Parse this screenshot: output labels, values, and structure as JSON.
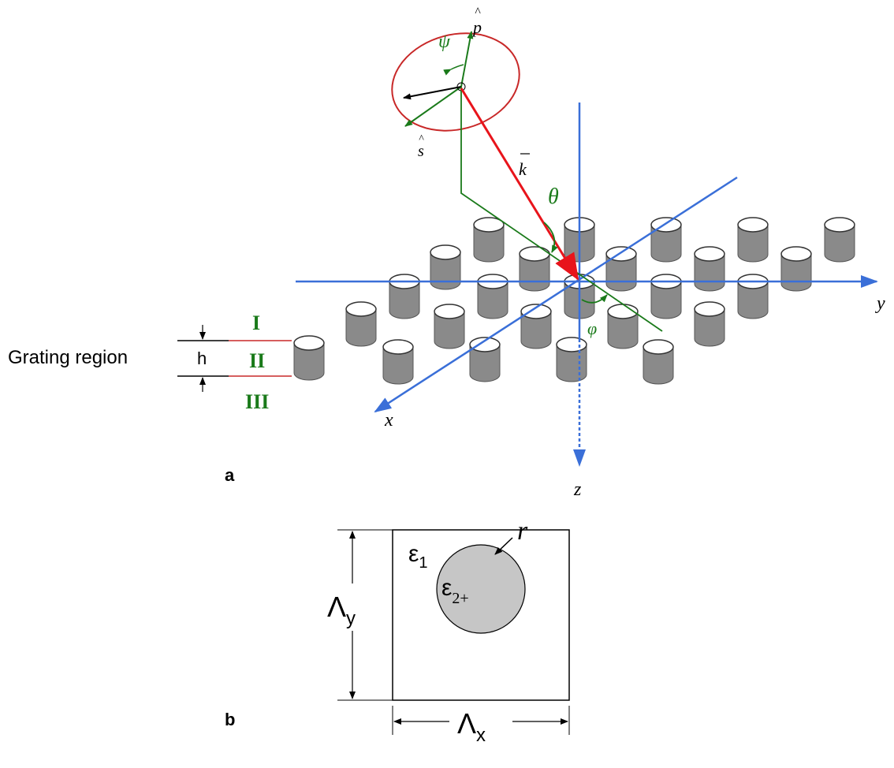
{
  "panel_a": {
    "label": "a",
    "region_label": "Grating region",
    "height_label": "h",
    "layers": [
      "I",
      "II",
      "III"
    ],
    "axes": {
      "x": "x",
      "y": "y",
      "z": "z"
    },
    "vectors": {
      "k": "k",
      "p": "p",
      "s": "s"
    },
    "angles": {
      "theta": "θ",
      "phi": "φ",
      "psi": "ψ"
    }
  },
  "panel_b": {
    "label": "b",
    "eps1": {
      "symbol": "ε",
      "subscript": "1"
    },
    "eps2": {
      "symbol": "ε",
      "subscript": "2+"
    },
    "radius": "r",
    "period_y": {
      "symbol": "Λ",
      "subscript": "y"
    },
    "period_x": {
      "symbol": "Λ",
      "subscript": "x"
    }
  }
}
